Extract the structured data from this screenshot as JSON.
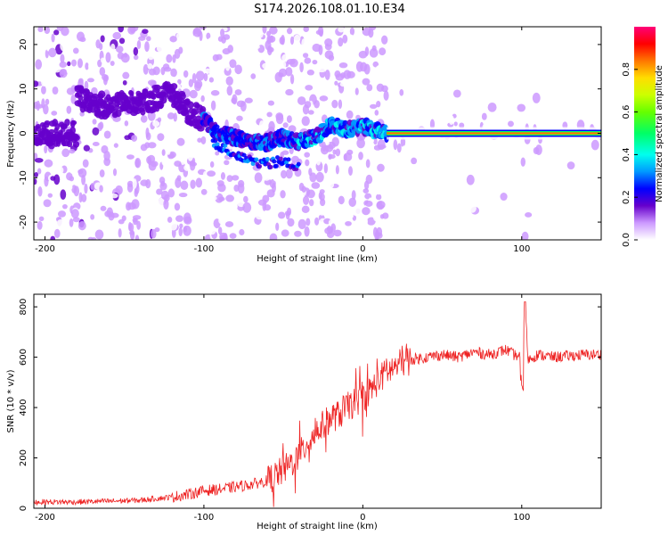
{
  "title": "S174.2026.108.01.10.E34",
  "chart_data": [
    {
      "type": "heatmap",
      "name": "spectrogram",
      "xlabel": "Height of straight line (km)",
      "ylabel": "Frequency (Hz)",
      "xlim": [
        -207,
        150
      ],
      "ylim": [
        -24,
        24
      ],
      "xticks": [
        "-200",
        "-100",
        "0",
        "100"
      ],
      "xtick_values": [
        -200,
        -100,
        0,
        100
      ],
      "yticks": [
        "-20",
        "-10",
        "0",
        "10",
        "20"
      ],
      "ytick_values": [
        -20,
        -10,
        0,
        10,
        20
      ],
      "colorbar": {
        "label": "Normalized spectral amplitude",
        "range": [
          0,
          1
        ],
        "ticks": [
          "0.0",
          "0.2",
          "0.4",
          "0.6",
          "0.8"
        ],
        "tick_values": [
          0,
          0.2,
          0.4,
          0.6,
          0.8
        ]
      },
      "ridge": [
        {
          "x": -180,
          "y": 8
        },
        {
          "x": -160,
          "y": 6
        },
        {
          "x": -140,
          "y": 7
        },
        {
          "x": -120,
          "y": 9
        },
        {
          "x": -110,
          "y": 5
        },
        {
          "x": -100,
          "y": 3
        },
        {
          "x": -90,
          "y": 0
        },
        {
          "x": -80,
          "y": -1
        },
        {
          "x": -70,
          "y": -2
        },
        {
          "x": -60,
          "y": -2
        },
        {
          "x": -50,
          "y": -1
        },
        {
          "x": -40,
          "y": -2
        },
        {
          "x": -30,
          "y": -1
        },
        {
          "x": -20,
          "y": 2
        },
        {
          "x": -10,
          "y": 1
        },
        {
          "x": 0,
          "y": 1.5
        },
        {
          "x": 15,
          "y": 0
        },
        {
          "x": 150,
          "y": 0
        }
      ],
      "carrier": {
        "x_start": 15,
        "x_end": 150,
        "frequency": 0,
        "amplitude": 0.85
      }
    },
    {
      "type": "line",
      "name": "snr",
      "xlabel": "Height of straight line (km)",
      "ylabel": "SNR (10 * v/v)",
      "xlim": [
        -207,
        150
      ],
      "ylim": [
        0,
        850
      ],
      "xticks": [
        "-200",
        "-100",
        "0",
        "100"
      ],
      "xtick_values": [
        -200,
        -100,
        0,
        100
      ],
      "yticks": [
        "0",
        "200",
        "400",
        "600",
        "800"
      ],
      "ytick_values": [
        0,
        200,
        400,
        600,
        800
      ],
      "series": [
        {
          "name": "SNR",
          "color": "#ee2222",
          "x": [
            -207,
            -180,
            -160,
            -140,
            -120,
            -110,
            -100,
            -90,
            -80,
            -70,
            -60,
            -50,
            -45,
            -40,
            -35,
            -30,
            -25,
            -20,
            -15,
            -10,
            -5,
            0,
            5,
            10,
            15,
            20,
            25,
            30,
            40,
            50,
            60,
            70,
            80,
            90,
            95,
            100,
            102,
            104,
            110,
            120,
            130,
            140,
            150
          ],
          "y": [
            25,
            25,
            28,
            32,
            45,
            55,
            70,
            75,
            85,
            95,
            110,
            150,
            180,
            210,
            260,
            300,
            330,
            360,
            370,
            400,
            420,
            440,
            470,
            510,
            540,
            560,
            580,
            590,
            600,
            610,
            600,
            620,
            610,
            630,
            610,
            600,
            820,
            590,
            610,
            600,
            605,
            610,
            610
          ]
        }
      ]
    }
  ]
}
